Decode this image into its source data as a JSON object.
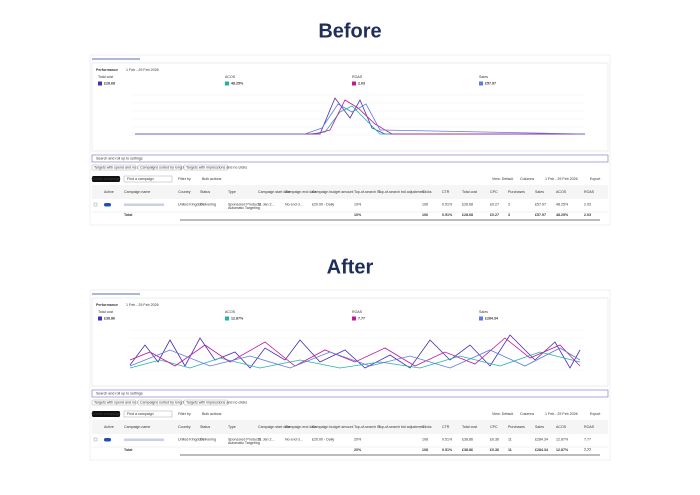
{
  "panels": [
    {
      "heading": "Before",
      "title": "Performance",
      "date": "1 Feb - 29 Feb 2026",
      "metrics": [
        {
          "label": "Total cost",
          "value": "£28.68",
          "color": "#4b2bb5"
        },
        {
          "label": "ACOS",
          "value": "48.25%",
          "color": "#1fb5a5"
        },
        {
          "label": "ROAS",
          "value": "2.03",
          "color": "#c2189b"
        },
        {
          "label": "Sales",
          "value": "£57.97",
          "color": "#5b7be0"
        }
      ],
      "row": {
        "country": "United Kingdom",
        "status": "Delivering",
        "type": "Sponsored Products",
        "subtype": "Automatic Targeting",
        "start": "11 Jan 2...",
        "end": "No end d...",
        "budget": "£20.00 - Daily",
        "tos": "10%",
        "clicks": "106",
        "ctr": "0.51%",
        "cost": "£28.68",
        "cpc": "£0.27",
        "purchases": "3",
        "sales": "£57.97",
        "acos": "48.25%",
        "roas": "2.03"
      },
      "total": {
        "label": "Total",
        "tos": "10%",
        "clicks": "106",
        "ctr": "0.51%",
        "cost": "£28.68",
        "cpc": "£0.27",
        "purchases": "3",
        "sales": "£57.97",
        "acos": "48.25%",
        "roas": "2.03"
      }
    },
    {
      "heading": "After",
      "title": "Performance",
      "date": "1 Feb - 29 Feb 2026",
      "metrics": [
        {
          "label": "Total cost",
          "value": "£38.86",
          "color": "#4b2bb5"
        },
        {
          "label": "ACOS",
          "value": "12.87%",
          "color": "#1fb5a5"
        },
        {
          "label": "ROAS",
          "value": "7.77",
          "color": "#c2189b"
        },
        {
          "label": "Sales",
          "value": "£284.34",
          "color": "#5b7be0"
        }
      ],
      "row": {
        "country": "United Kingdom",
        "status": "Delivering",
        "type": "Sponsored Products",
        "subtype": "Automatic Targeting",
        "start": "11 Jan 2...",
        "end": "No end d...",
        "budget": "£20.00 - Daily",
        "tos": "20%",
        "clicks": "108",
        "ctr": "0.51%",
        "cost": "£38.86",
        "cpc": "£0.36",
        "purchases": "11",
        "sales": "£284.34",
        "acos": "12.87%",
        "roas": "7.77"
      },
      "total": {
        "label": "Total",
        "tos": "20%",
        "clicks": "108",
        "ctr": "0.51%",
        "cost": "£38.86",
        "cpc": "£0.36",
        "purchases": "11",
        "sales": "£284.34",
        "acos": "12.87%",
        "roas": "7.77"
      }
    }
  ],
  "ui": {
    "search": "Search and roll up to settings",
    "chips": [
      "Targets with spend and no sales",
      "Campaigns sorted by long term sales",
      "Targets with impressions and no clicks"
    ],
    "create": "Create campaign",
    "find": "Find a campaign",
    "filter": "Filter by",
    "bulk": "Bulk actions",
    "view": "View: Default",
    "columns_btn": "Columns",
    "export": "Export",
    "columns": {
      "active": "Active",
      "name": "Campaign name",
      "country": "Country",
      "status": "Status",
      "type": "Type",
      "start": "Campaign start date",
      "end": "Campaign end date",
      "budget": "Campaign budget amount",
      "tos": "Top-of-search IS",
      "adj": "Top-of-search bid adjustment",
      "clicks": "Clicks",
      "ctr": "CTR",
      "cost": "Total cost",
      "cpc": "CPC",
      "purchases": "Purchases",
      "sales": "Sales",
      "acos": "ACOS",
      "roas": "ROAS"
    }
  }
}
